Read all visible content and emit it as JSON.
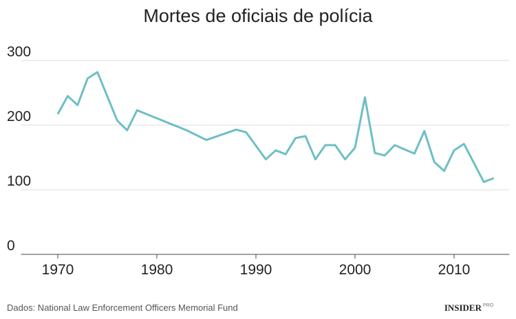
{
  "chart_data": {
    "type": "line",
    "title": "Mortes de oficiais de polícia",
    "source": "Dados: National Law Enforcement Officers Memorial Fund",
    "logo": "INSIDER",
    "logo_suffix": "PRO",
    "x": [
      1970,
      1971,
      1972,
      1973,
      1974,
      1976,
      1977,
      1978,
      1983,
      1985,
      1988,
      1989,
      1991,
      1992,
      1993,
      1994,
      1995,
      1996,
      1997,
      1998,
      1999,
      2000,
      2001,
      2002,
      2003,
      2004,
      2006,
      2007,
      2008,
      2009,
      2010,
      2011,
      2013,
      2014
    ],
    "series": [
      {
        "name": "Mortes",
        "color": "#6dbfc4",
        "values": [
          217,
          245,
          231,
          272,
          282,
          207,
          192,
          223,
          192,
          177,
          193,
          189,
          147,
          161,
          155,
          180,
          183,
          147,
          169,
          169,
          147,
          165,
          243,
          157,
          153,
          169,
          156,
          191,
          143,
          129,
          161,
          171,
          112,
          118
        ]
      }
    ],
    "xlim": [
      1966,
      2016
    ],
    "xticks": [
      1970,
      1980,
      1990,
      2000,
      2010
    ],
    "ylim": [
      0,
      300
    ],
    "yticks": [
      0,
      100,
      200,
      300
    ],
    "grid": true
  }
}
